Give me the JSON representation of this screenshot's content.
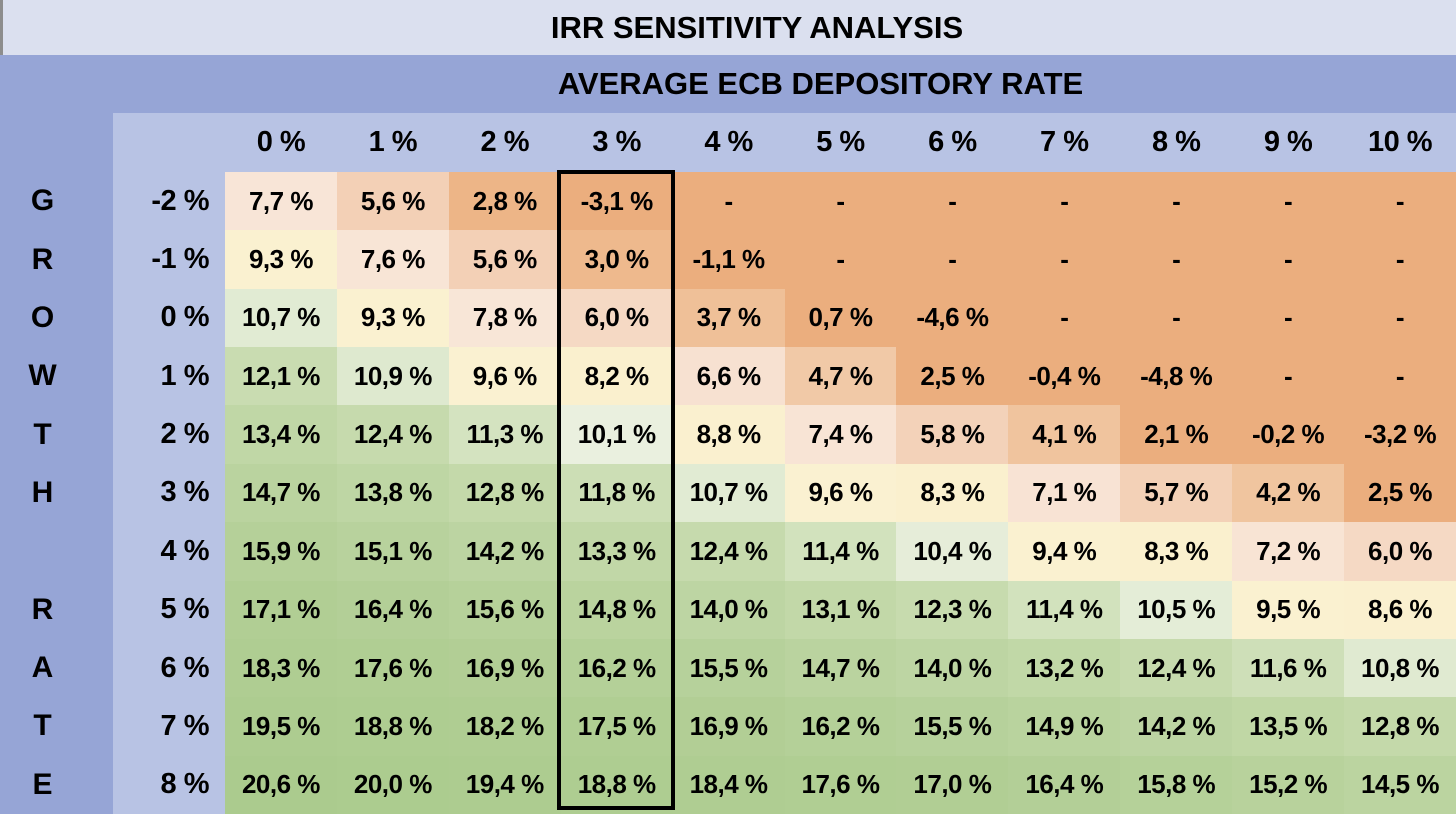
{
  "table": {
    "title": "IRR SENSITIVITY ANALYSIS",
    "column_axis_title": "AVERAGE ECB DEPOSITORY RATE",
    "row_axis_title": "GROWTH RATE",
    "row_axis_letters": [
      "G",
      "R",
      "O",
      "W",
      "T",
      "H",
      "",
      "R",
      "A",
      "T",
      "E"
    ],
    "column_headers": [
      "0 %",
      "1 %",
      "2 %",
      "3 %",
      "4 %",
      "5 %",
      "6 %",
      "7 %",
      "8 %",
      "9 %",
      "10 %"
    ],
    "row_headers": [
      "-2 %",
      "-1 %",
      "0 %",
      "1 %",
      "2 %",
      "3 %",
      "4 %",
      "5 %",
      "6 %",
      "7 %",
      "8 %"
    ],
    "empty_cell_symbol": "-",
    "number_format": {
      "decimal_separator": ",",
      "suffix": " %",
      "decimals": 1
    },
    "highlighted_column_index": 3,
    "highlighted_column_label": "3 %"
  },
  "colors": {
    "page_edge": "#8d8d8d",
    "title_bg": "#dbe0ef",
    "band_bg": "#96a5d6",
    "header_bg": "#b8c3e4",
    "text": "#000000",
    "highlight_border": "#000000"
  },
  "chart_data": {
    "type": "heatmap",
    "title": "IRR SENSITIVITY ANALYSIS",
    "xlabel": "AVERAGE ECB DEPOSITORY RATE",
    "ylabel": "GROWTH RATE",
    "x_tick_labels": [
      "0 %",
      "1 %",
      "2 %",
      "3 %",
      "4 %",
      "5 %",
      "6 %",
      "7 %",
      "8 %",
      "9 %",
      "10 %"
    ],
    "y_tick_labels": [
      "-2 %",
      "-1 %",
      "0 %",
      "1 %",
      "2 %",
      "3 %",
      "4 %",
      "5 %",
      "6 %",
      "7 %",
      "8 %"
    ],
    "values": [
      [
        7.7,
        5.6,
        2.8,
        -3.1,
        null,
        null,
        null,
        null,
        null,
        null,
        null
      ],
      [
        9.3,
        7.6,
        5.6,
        3.0,
        -1.1,
        null,
        null,
        null,
        null,
        null,
        null
      ],
      [
        10.7,
        9.3,
        7.8,
        6.0,
        3.7,
        0.7,
        -4.6,
        null,
        null,
        null,
        null
      ],
      [
        12.1,
        10.9,
        9.6,
        8.2,
        6.6,
        4.7,
        2.5,
        -0.4,
        -4.8,
        null,
        null
      ],
      [
        13.4,
        12.4,
        11.3,
        10.1,
        8.8,
        7.4,
        5.8,
        4.1,
        2.1,
        -0.2,
        -3.2
      ],
      [
        14.7,
        13.8,
        12.8,
        11.8,
        10.7,
        9.6,
        8.3,
        7.1,
        5.7,
        4.2,
        2.5
      ],
      [
        15.9,
        15.1,
        14.2,
        13.3,
        12.4,
        11.4,
        10.4,
        9.4,
        8.3,
        7.2,
        6.0
      ],
      [
        17.1,
        16.4,
        15.6,
        14.8,
        14.0,
        13.1,
        12.3,
        11.4,
        10.5,
        9.5,
        8.6
      ],
      [
        18.3,
        17.6,
        16.9,
        16.2,
        15.5,
        14.7,
        14.0,
        13.2,
        12.4,
        11.6,
        10.8
      ],
      [
        19.5,
        18.8,
        18.2,
        17.5,
        16.9,
        16.2,
        15.5,
        14.9,
        14.2,
        13.5,
        12.8
      ],
      [
        20.6,
        20.0,
        19.4,
        18.8,
        18.4,
        17.6,
        17.0,
        16.4,
        15.8,
        15.2,
        14.5
      ]
    ],
    "null_rendering": "-",
    "legend": "none",
    "annotations": "column '3 %' outlined in black",
    "colorscale_stops": [
      [
        2.5,
        "#ebae7e"
      ],
      [
        3.1,
        "#eebb90"
      ],
      [
        4.2,
        "#f0c59f"
      ],
      [
        5.8,
        "#f3d2b9"
      ],
      [
        6.2,
        "#f7e0cf"
      ],
      [
        7.9,
        "#f8e6d8"
      ],
      [
        8.2,
        "#faf0ce"
      ],
      [
        9.8,
        "#faf1d1"
      ],
      [
        10.1,
        "#eaf0df"
      ],
      [
        10.9,
        "#dee9cf"
      ],
      [
        11.5,
        "#cfe0b9"
      ],
      [
        12.4,
        "#c6daad"
      ],
      [
        13.4,
        "#c0d7a6"
      ],
      [
        14.3,
        "#bcd4a1"
      ],
      [
        15.6,
        "#b6d19a"
      ],
      [
        17.1,
        "#b1ce94"
      ],
      [
        20.6,
        "#abcb8e"
      ]
    ]
  }
}
